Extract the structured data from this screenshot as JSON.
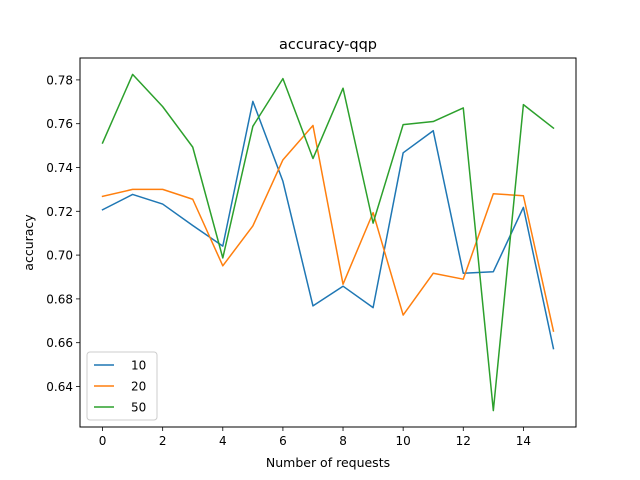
{
  "chart_data": {
    "type": "line",
    "title": "accuracy-qqp",
    "xlabel": "Number of requests",
    "ylabel": "accuracy",
    "xlim": [
      -0.75,
      15.75
    ],
    "ylim": [
      0.6215,
      0.79
    ],
    "xticks": [
      0,
      2,
      4,
      6,
      8,
      10,
      12,
      14
    ],
    "yticks": [
      0.64,
      0.66,
      0.68,
      0.7,
      0.72,
      0.74,
      0.76,
      0.78
    ],
    "ytick_labels": [
      "0.64",
      "0.66",
      "0.68",
      "0.70",
      "0.72",
      "0.74",
      "0.76",
      "0.78"
    ],
    "x": [
      0,
      1,
      2,
      3,
      4,
      5,
      6,
      7,
      8,
      9,
      10,
      11,
      12,
      13,
      14,
      15
    ],
    "grid": false,
    "legend": {
      "placement": "lower-left"
    },
    "series": [
      {
        "name": "10",
        "color": "#1f77b4",
        "values": [
          0.7207,
          0.7277,
          0.7233,
          0.7135,
          0.7041,
          0.7702,
          0.7337,
          0.6768,
          0.6858,
          0.676,
          0.7467,
          0.7568,
          0.6917,
          0.6924,
          0.7218,
          0.6573
        ]
      },
      {
        "name": "20",
        "color": "#ff7f0e",
        "values": [
          0.7268,
          0.73,
          0.73,
          0.7255,
          0.6951,
          0.7133,
          0.7435,
          0.7592,
          0.6867,
          0.7194,
          0.6726,
          0.6917,
          0.689,
          0.728,
          0.7271,
          0.6653
        ]
      },
      {
        "name": "50",
        "color": "#2ca02c",
        "values": [
          0.7512,
          0.7825,
          0.7678,
          0.7493,
          0.6987,
          0.7588,
          0.7806,
          0.7441,
          0.7762,
          0.7146,
          0.7596,
          0.761,
          0.7672,
          0.629,
          0.7687,
          0.758
        ]
      }
    ]
  }
}
